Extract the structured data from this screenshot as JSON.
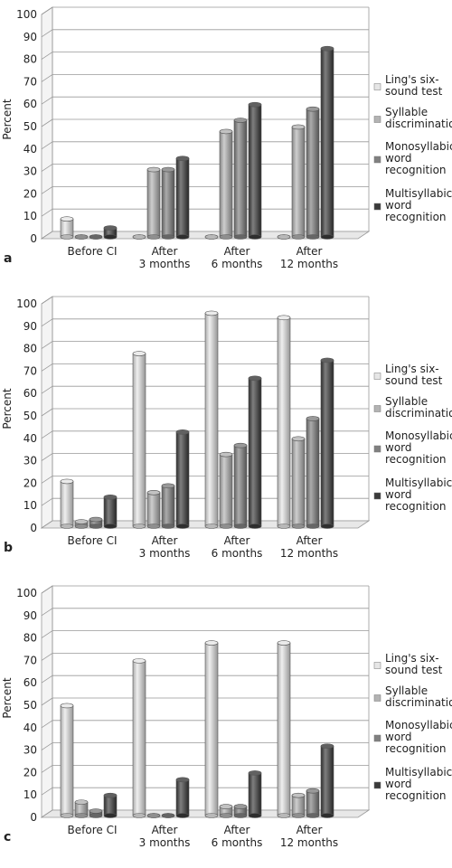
{
  "chart_data": [
    {
      "type": "bar",
      "panel_label": "a",
      "categories": [
        "Before CI",
        "After\n3 months",
        "After\n6 months",
        "After\n12 months"
      ],
      "ylabel": "Percent",
      "ylim": [
        0,
        100
      ],
      "yticks": [
        0,
        10,
        20,
        30,
        40,
        50,
        60,
        70,
        80,
        90,
        100
      ],
      "grid": true,
      "legend": "right",
      "series": [
        {
          "name": "Ling's six-\nsound test",
          "color": "#e6e6e6",
          "values": [
            8,
            0,
            0,
            0
          ]
        },
        {
          "name": "Syllable\ndiscrimination",
          "color": "#b3b3b3",
          "values": [
            0,
            30,
            47,
            49
          ]
        },
        {
          "name": "Monosyllabic\nword\nrecognition",
          "color": "#808080",
          "values": [
            0,
            30,
            52,
            57
          ]
        },
        {
          "name": "Multisyllabic\nword\nrecognition",
          "color": "#3a3a3a",
          "values": [
            4,
            35,
            59,
            84
          ]
        }
      ]
    },
    {
      "type": "bar",
      "panel_label": "b",
      "categories": [
        "Before CI",
        "After\n3 months",
        "After\n6 months",
        "After\n12 months"
      ],
      "ylabel": "Percent",
      "ylim": [
        0,
        100
      ],
      "yticks": [
        0,
        10,
        20,
        30,
        40,
        50,
        60,
        70,
        80,
        90,
        100
      ],
      "grid": true,
      "legend": "right",
      "series": [
        {
          "name": "Ling's six-\nsound test",
          "color": "#e6e6e6",
          "values": [
            20,
            77,
            95,
            93
          ]
        },
        {
          "name": "Syllable\ndiscrimination",
          "color": "#b3b3b3",
          "values": [
            2,
            15,
            32,
            39
          ]
        },
        {
          "name": "Monosyllabic\nword\nrecognition",
          "color": "#808080",
          "values": [
            3,
            18,
            36,
            48
          ]
        },
        {
          "name": "Multisyllabic\nword\nrecognition",
          "color": "#3a3a3a",
          "values": [
            13,
            42,
            66,
            74
          ]
        }
      ]
    },
    {
      "type": "bar",
      "panel_label": "c",
      "categories": [
        "Before CI",
        "After\n3 months",
        "After\n6 months",
        "After\n12 months"
      ],
      "ylabel": "Percent",
      "ylim": [
        0,
        100
      ],
      "yticks": [
        0,
        10,
        20,
        30,
        40,
        50,
        60,
        70,
        80,
        90,
        100
      ],
      "grid": true,
      "legend": "right",
      "series": [
        {
          "name": "Ling's six-\nsound test",
          "color": "#e6e6e6",
          "values": [
            49,
            69,
            77,
            77
          ]
        },
        {
          "name": "Syllable\ndiscrimination",
          "color": "#b3b3b3",
          "values": [
            6,
            0,
            4,
            9
          ]
        },
        {
          "name": "Monosyllabic\nword\nrecognition",
          "color": "#808080",
          "values": [
            2,
            0,
            4,
            11
          ]
        },
        {
          "name": "Multisyllabic\nword\nrecognition",
          "color": "#3a3a3a",
          "values": [
            9,
            16,
            19,
            31
          ]
        }
      ]
    }
  ]
}
